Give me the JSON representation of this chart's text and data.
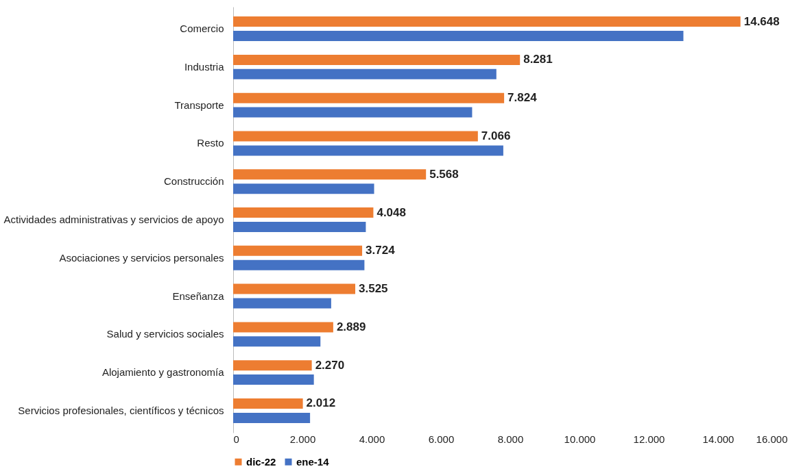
{
  "chart_data": {
    "type": "bar",
    "orientation": "horizontal",
    "categories": [
      "Comercio",
      "Industria",
      "Transporte",
      "Resto",
      "Construcción",
      "Actividades administrativas y servicios de apoyo",
      "Asociaciones y servicios personales",
      "Enseñanza",
      "Salud y servicios sociales",
      "Alojamiento y gastronomía",
      "Servicios profesionales, científicos y técnicos"
    ],
    "series": [
      {
        "name": "dic-22",
        "color": "#ed7d31",
        "values": [
          14648,
          8281,
          7824,
          7066,
          5568,
          4048,
          3724,
          3525,
          2889,
          2270,
          2012
        ],
        "value_labels": [
          "14.648",
          "8.281",
          "7.824",
          "7.066",
          "5.568",
          "4.048",
          "3.724",
          "3.525",
          "2.889",
          "2.270",
          "2.012"
        ]
      },
      {
        "name": "ene-14",
        "color": "#4472c4",
        "values": [
          13000,
          7600,
          6900,
          7800,
          4070,
          3830,
          3790,
          2830,
          2520,
          2330,
          2220
        ]
      }
    ],
    "xlim": [
      0,
      16000
    ],
    "xticks": [
      0,
      {
        "value": 2000,
        "label": "2.000"
      },
      {
        "value": 4000,
        "label": "4.000"
      },
      {
        "value": 6000,
        "label": "6.000"
      },
      {
        "value": 8000,
        "label": "8.000"
      },
      {
        "value": 10000,
        "label": "10.000"
      },
      {
        "value": 12000,
        "label": "12.000"
      },
      {
        "value": 14000,
        "label": "14.000"
      },
      {
        "value": 16000,
        "label": "16.000"
      }
    ],
    "grid": false,
    "legend": "bottom"
  }
}
